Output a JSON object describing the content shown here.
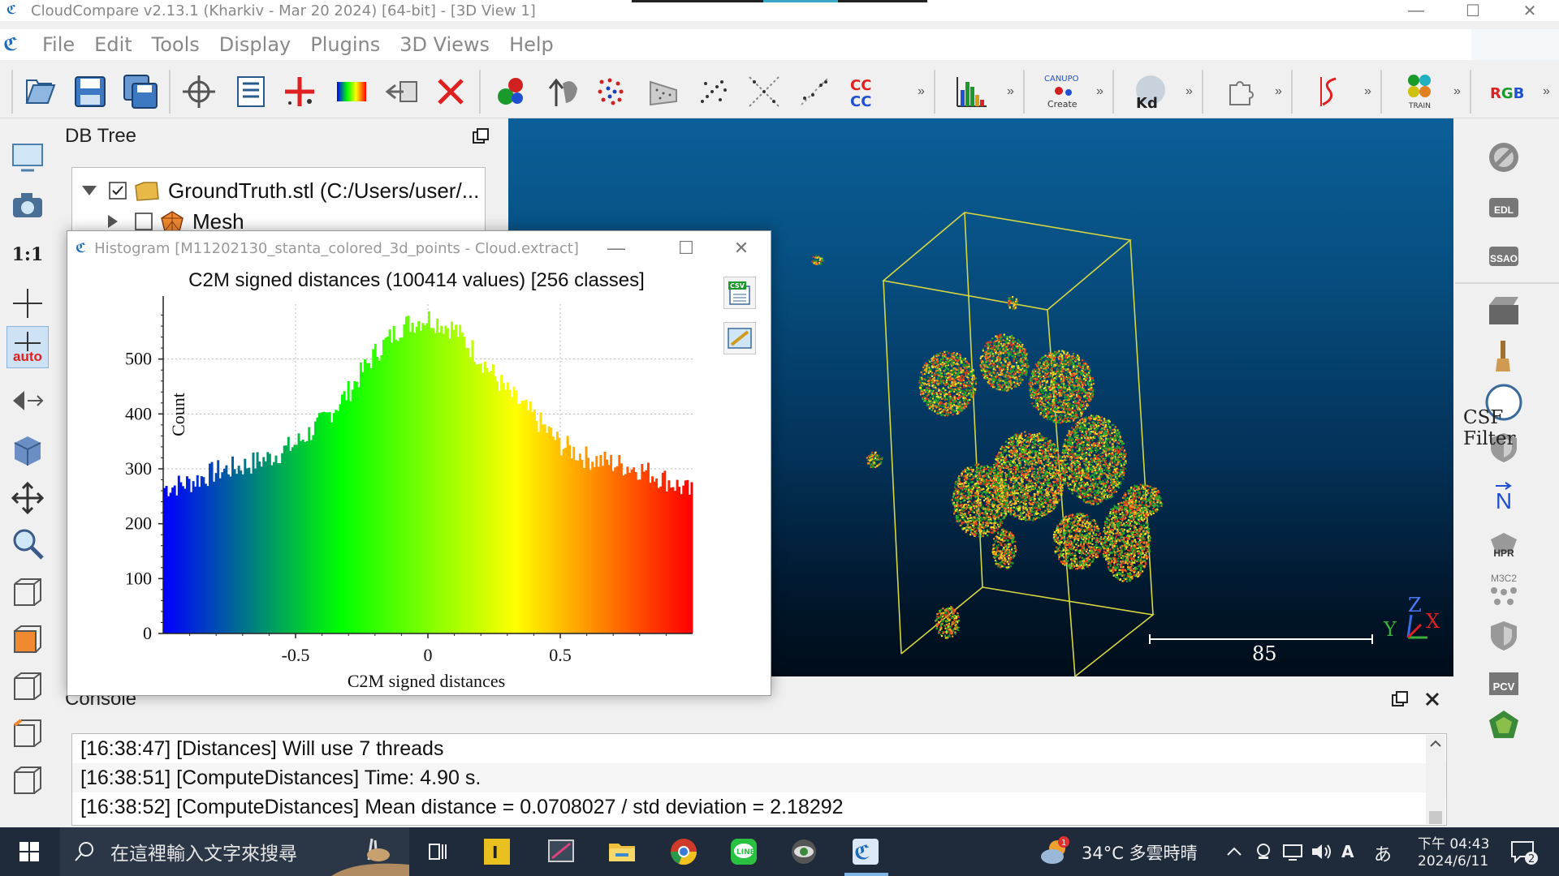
{
  "window": {
    "title": "CloudCompare v2.13.1 (Kharkiv - Mar 20 2024) [64-bit] - [3D View 1]",
    "minimize": "—",
    "maximize": "☐",
    "close": "✕"
  },
  "menu": {
    "items": [
      "File",
      "Edit",
      "Tools",
      "Display",
      "Plugins",
      "3D Views",
      "Help"
    ]
  },
  "toolbar": {
    "more": "»",
    "icons": [
      "open-icon",
      "save-icon",
      "save-all-icon",
      "pick-icon",
      "list-icon",
      "point-pick-icon",
      "color-icon",
      "export-icon",
      "delete-icon",
      "merge-icon",
      "segment-icon",
      "sample-icon",
      "filter-icon",
      "noise-icon",
      "grid-icon",
      "normal-icon",
      "cc-icon",
      "histogram-icon",
      "canupo-icon",
      "kd-icon",
      "puzzle-icon",
      "ransac-icon",
      "m3c2-train-icon",
      "rgb-icon"
    ],
    "canupo_label": "CANUPO",
    "canupo_sub": "Create",
    "kd_label": "Kd",
    "train_label": "TRAIN",
    "rgb_label": "RGB",
    "cc_label": "CC"
  },
  "left_toolbar": {
    "ratio_label": "1:1",
    "auto_label": "auto"
  },
  "dbtree": {
    "title": "DB Tree",
    "items": [
      {
        "label": "GroundTruth.stl (C:/Users/user/...",
        "checked": true,
        "expanded": true
      },
      {
        "label": "Mesh",
        "checked": false,
        "expanded": false
      }
    ]
  },
  "view3d": {
    "scale_label": "85",
    "axis_z": "Z",
    "axis_y": "Y",
    "axis_x": "X"
  },
  "right_toolbar": {
    "csf_label": "CSF Filter",
    "edl_label": "EDL",
    "ssao_label": "SSAO",
    "north_label": "N",
    "hpr_label": "HPR",
    "m3c2_label": "M3C2",
    "pcv_label": "PCV"
  },
  "console": {
    "title": "Console",
    "lines": [
      "[16:38:47] [Distances] Will use 7 threads",
      "[16:38:51] [ComputeDistances] Time: 4.90 s.",
      "[16:38:52] [ComputeDistances] Mean distance = 0.0708027 / std deviation = 2.18292"
    ]
  },
  "histogram": {
    "window_title": "Histogram [M11202130_stanta_colored_3d_points - Cloud.extract]",
    "csv_label": "CSV"
  },
  "chart_data": {
    "type": "bar",
    "title": "C2M signed distances (100414 values)  [256 classes]",
    "xlabel": "C2M signed distances",
    "ylabel": "Count",
    "xlim": [
      -1.0,
      1.0
    ],
    "ylim": [
      0,
      600
    ],
    "xticks": [
      -0.5,
      0,
      0.5
    ],
    "xtick_labels": [
      "-0.5",
      "0",
      "0.5"
    ],
    "yticks": [
      0,
      100,
      200,
      300,
      400,
      500
    ],
    "ytick_labels": [
      "0",
      "100",
      "200",
      "300",
      "400",
      "500"
    ],
    "classes": 256,
    "profile_x": [
      -1.0,
      -0.9,
      -0.8,
      -0.7,
      -0.6,
      -0.5,
      -0.4,
      -0.3,
      -0.2,
      -0.1,
      0.0,
      0.1,
      0.2,
      0.3,
      0.4,
      0.5,
      0.6,
      0.7,
      0.8,
      0.9,
      1.0
    ],
    "profile_counts": [
      265,
      275,
      295,
      305,
      320,
      345,
      385,
      440,
      510,
      560,
      575,
      555,
      500,
      440,
      395,
      345,
      320,
      310,
      300,
      280,
      255
    ],
    "colormap": [
      "#0000ff",
      "#00ff00",
      "#ffff00",
      "#ff0000"
    ],
    "grid": true
  },
  "taskbar": {
    "search_placeholder": "在這裡輸入文字來搜尋",
    "weather": "34°C 多雲時晴",
    "time": "下午 04:43",
    "date": "2024/6/11",
    "notifications": "2",
    "ime_label": "A",
    "ime2_label": "あ",
    "weather_badge": "1"
  }
}
